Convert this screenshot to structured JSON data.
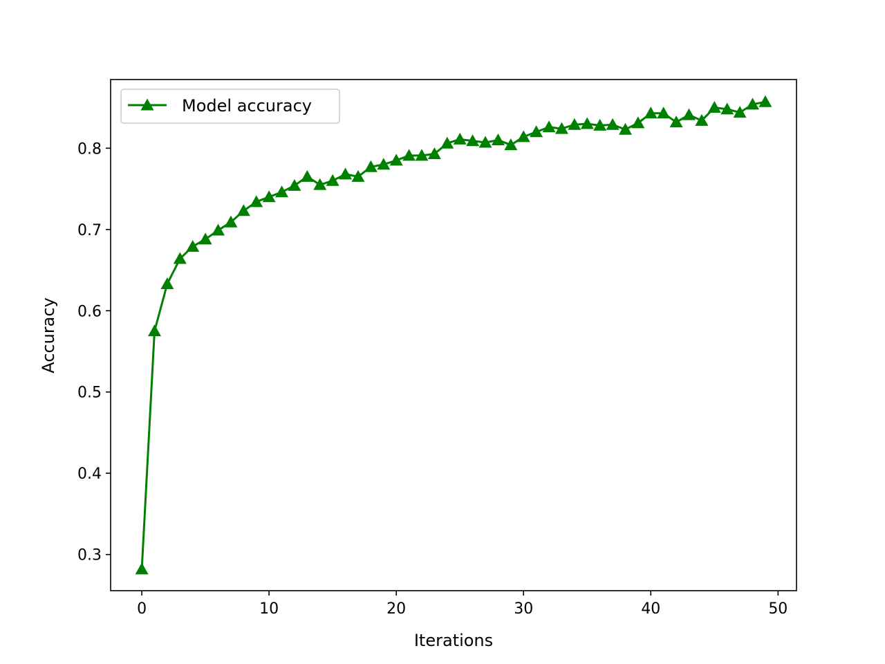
{
  "chart_data": {
    "type": "line",
    "title": "",
    "xlabel": "Iterations",
    "ylabel": "Accuracy",
    "xlim": [
      -2.45,
      51.45
    ],
    "ylim": [
      0.2555,
      0.8845
    ],
    "xticks": [
      0,
      10,
      20,
      30,
      40,
      50
    ],
    "yticks": [
      0.3,
      0.4,
      0.5,
      0.6,
      0.7,
      0.8
    ],
    "ytick_labels": [
      "0.3",
      "0.4",
      "0.5",
      "0.6",
      "0.7",
      "0.8"
    ],
    "grid": false,
    "legend_position": "top-left",
    "series": [
      {
        "name": "Model accuracy",
        "color": "#008000",
        "marker": "triangle",
        "x": [
          0,
          1,
          2,
          3,
          4,
          5,
          6,
          7,
          8,
          9,
          10,
          11,
          12,
          13,
          14,
          15,
          16,
          17,
          18,
          19,
          20,
          21,
          22,
          23,
          24,
          25,
          26,
          27,
          28,
          29,
          30,
          31,
          32,
          33,
          34,
          35,
          36,
          37,
          38,
          39,
          40,
          41,
          42,
          43,
          44,
          45,
          46,
          47,
          48,
          49
        ],
        "y": [
          0.282,
          0.575,
          0.633,
          0.664,
          0.679,
          0.688,
          0.699,
          0.709,
          0.723,
          0.734,
          0.74,
          0.746,
          0.754,
          0.765,
          0.755,
          0.76,
          0.768,
          0.765,
          0.777,
          0.78,
          0.785,
          0.791,
          0.791,
          0.793,
          0.806,
          0.811,
          0.809,
          0.807,
          0.81,
          0.804,
          0.814,
          0.82,
          0.826,
          0.824,
          0.829,
          0.83,
          0.828,
          0.829,
          0.823,
          0.831,
          0.843,
          0.843,
          0.832,
          0.841,
          0.834,
          0.85,
          0.848,
          0.844,
          0.854,
          0.857
        ]
      }
    ]
  }
}
